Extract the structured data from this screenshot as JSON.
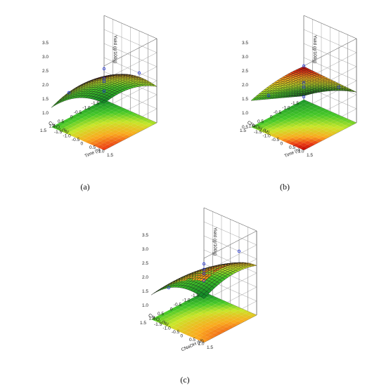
{
  "figure": {
    "panel_labels": [
      "(a)",
      "(b)",
      "(c)"
    ]
  },
  "chart_data": [
    {
      "type": "surface3d",
      "panel": "(a)",
      "xlabel": "CH₂O₂ (%)",
      "ylabel": "Time (h)",
      "zlabel": "Yield (g/100g)",
      "x_ticks": [
        "-1.5",
        "-1.0",
        "-0.5",
        "0",
        "0.5",
        "1.0",
        "1.5"
      ],
      "y_ticks": [
        "-1.5",
        "-1.0",
        "-0.5",
        "0",
        "0.5",
        "1.0",
        "1.5"
      ],
      "z_ticks": [
        "1.0",
        "1.5",
        "2.0",
        "2.5",
        "3.0",
        "3.5"
      ],
      "xlim": [
        -1.5,
        1.5
      ],
      "ylim": [
        -1.5,
        1.5
      ],
      "zlim": [
        0.5,
        3.5
      ],
      "model": {
        "b0": 2.1,
        "bx": 0.35,
        "by": 0.55,
        "bxy": 0.05,
        "bxx": -0.12,
        "byy": -0.1
      },
      "design_points": [
        {
          "x": -1,
          "y": -1,
          "z": 1.1
        },
        {
          "x": 1,
          "y": -1,
          "z": 1.7
        },
        {
          "x": -1,
          "y": 1,
          "z": 2.3
        },
        {
          "x": 1,
          "y": 1,
          "z": 3.1
        },
        {
          "x": 0,
          "y": 0,
          "z": 2.15
        },
        {
          "x": 0,
          "y": 0,
          "z": 2.05
        }
      ]
    },
    {
      "type": "surface3d",
      "panel": "(b)",
      "xlabel": "CNaOH (M)",
      "ylabel": "Time (h)",
      "zlabel": "Yield (g/100g)",
      "x_ticks": [
        "-1.5",
        "-1.0",
        "-0.5",
        "0",
        "0.5",
        "1.0",
        "1.5"
      ],
      "y_ticks": [
        "-1.5",
        "-1.0",
        "-0.5",
        "0",
        "0.5",
        "1.0",
        "1.5"
      ],
      "z_ticks": [
        "0.5",
        "1.0",
        "1.5",
        "2.0",
        "2.5",
        "3.0",
        "3.5"
      ],
      "xlim": [
        -1.5,
        1.5
      ],
      "ylim": [
        -1.5,
        1.5
      ],
      "zlim": [
        0.5,
        3.5
      ],
      "model": {
        "b0": 1.9,
        "bx": 0.45,
        "by": 0.5,
        "bxy": 0.12,
        "bxx": 0.0,
        "byy": -0.05
      },
      "design_points": [
        {
          "x": -1,
          "y": -1,
          "z": 0.9
        },
        {
          "x": 1,
          "y": -1,
          "z": 1.6
        },
        {
          "x": -1,
          "y": 1,
          "z": 1.8
        },
        {
          "x": 1,
          "y": 1,
          "z": 3.2
        },
        {
          "x": 0,
          "y": 0,
          "z": 2.0
        },
        {
          "x": 0,
          "y": 0,
          "z": 1.85
        }
      ]
    },
    {
      "type": "surface3d",
      "panel": "(c)",
      "xlabel": "CH₂O₂ (%)",
      "ylabel": "CNaOH (M)",
      "zlabel": "Yield (g/100g)",
      "x_ticks": [
        "-1.5",
        "-1.0",
        "-0.5",
        "0",
        "0.5",
        "1.0",
        "1.5"
      ],
      "y_ticks": [
        "-1.5",
        "-1.0",
        "-0.5",
        "0",
        "0.5",
        "1.0",
        "1.5"
      ],
      "z_ticks": [
        "1.0",
        "1.5",
        "2.0",
        "2.5",
        "3.0",
        "3.5"
      ],
      "xlim": [
        -1.5,
        1.5
      ],
      "ylim": [
        -1.5,
        1.5
      ],
      "zlim": [
        0.5,
        3.5
      ],
      "model": {
        "b0": 2.2,
        "bx": 0.25,
        "by": 0.55,
        "bxy": -0.08,
        "bxx": -0.15,
        "byy": -0.1
      },
      "design_points": [
        {
          "x": -1,
          "y": -1,
          "z": 1.2
        },
        {
          "x": 1,
          "y": -1,
          "z": 1.6
        },
        {
          "x": -1,
          "y": 1,
          "z": 2.8
        },
        {
          "x": 1,
          "y": 1,
          "z": 3.0
        },
        {
          "x": 0,
          "y": 0,
          "z": 2.2
        },
        {
          "x": 0,
          "y": 0,
          "z": 2.05
        }
      ]
    }
  ]
}
